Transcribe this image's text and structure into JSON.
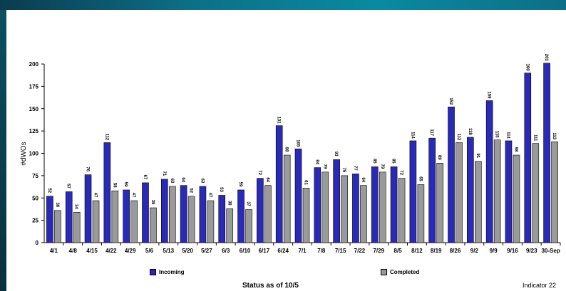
{
  "chart_data": {
    "type": "bar",
    "ylabel": "#dWOs",
    "ylim": [
      0,
      200
    ],
    "yticks": [
      0,
      25,
      50,
      75,
      100,
      125,
      150,
      175,
      200
    ],
    "categories": [
      "4/1",
      "4/8",
      "4/15",
      "4/22",
      "4/29",
      "5/6",
      "5/13",
      "5/20",
      "5/27",
      "6/3",
      "6/10",
      "6/17",
      "6/24",
      "7/1",
      "7/8",
      "7/15",
      "7/22",
      "7/29",
      "8/5",
      "8/12",
      "8/19",
      "8/26",
      "9/2",
      "9/9",
      "9/16",
      "9/23",
      "30-Sep"
    ],
    "series": [
      {
        "name": "Incoming",
        "color": "#2a2ab8",
        "values": [
          52,
          57,
          76,
          112,
          59,
          67,
          71,
          64,
          63,
          53,
          59,
          72,
          131,
          105,
          84,
          93,
          77,
          85,
          85,
          114,
          117,
          152,
          118,
          159,
          114,
          190,
          201
        ]
      },
      {
        "name": "Completed",
        "color": "#9a9a9a",
        "values": [
          36,
          34,
          47,
          58,
          47,
          39,
          63,
          52,
          47,
          38,
          37,
          64,
          98,
          61,
          79,
          75,
          64,
          79,
          72,
          65,
          89,
          112,
          91,
          115,
          98,
          111,
          113
        ]
      }
    ],
    "legend_position": "bottom"
  },
  "footer": {
    "title": "Status as of 10/5",
    "indicator": "Indicator 22"
  }
}
